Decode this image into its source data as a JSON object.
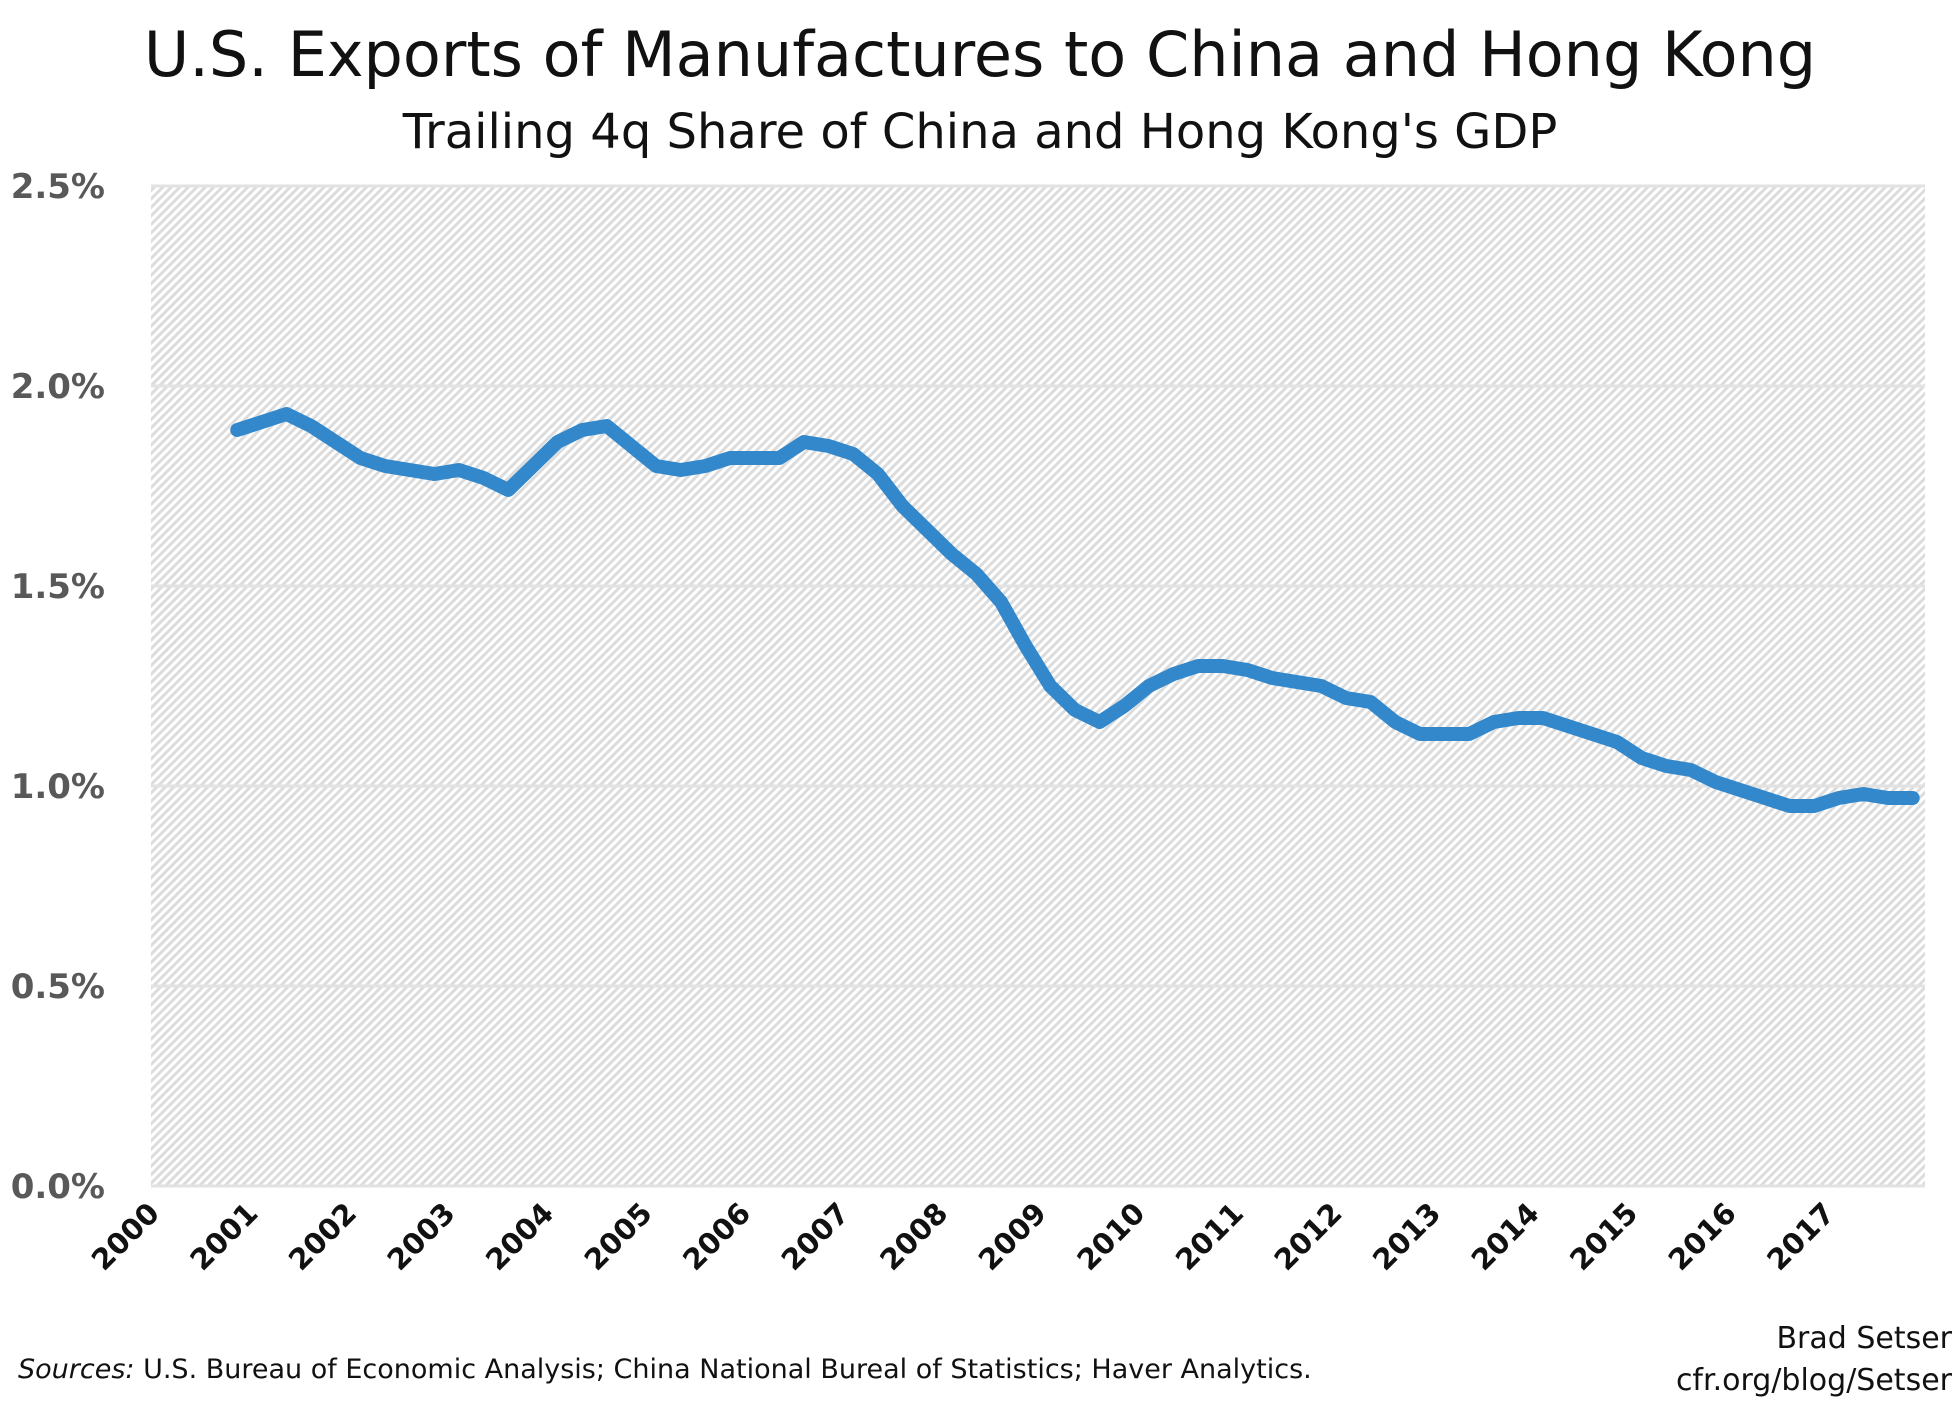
{
  "chart_data": {
    "type": "line",
    "title": "U.S. Exports of Manufactures to China and Hong Kong",
    "subtitle": "Trailing 4q Share of China and Hong Kong's GDP",
    "xlabel": "",
    "ylabel": "",
    "xlim": [
      2000,
      2018
    ],
    "ylim": [
      0,
      2.5
    ],
    "grid": true,
    "legend": "none",
    "color": "#3388cc",
    "x_tick_labels": [
      "2000",
      "2001",
      "2002",
      "2003",
      "2004",
      "2005",
      "2006",
      "2007",
      "2008",
      "2009",
      "2010",
      "2011",
      "2012",
      "2013",
      "2014",
      "2015",
      "2016",
      "2017"
    ],
    "y_tick_labels": [
      "0.0%",
      "0.5%",
      "1.0%",
      "1.5%",
      "2.0%",
      "2.5%"
    ],
    "y_ticks": [
      0,
      0.5,
      1.0,
      1.5,
      2.0,
      2.5
    ],
    "x_start": "2000Q4",
    "x_end": "2017Q4",
    "x_frequency": "quarterly",
    "values": [
      1.89,
      1.91,
      1.93,
      1.9,
      1.86,
      1.82,
      1.8,
      1.79,
      1.78,
      1.79,
      1.77,
      1.74,
      1.8,
      1.86,
      1.89,
      1.9,
      1.85,
      1.8,
      1.79,
      1.8,
      1.82,
      1.82,
      1.82,
      1.86,
      1.85,
      1.83,
      1.78,
      1.7,
      1.64,
      1.58,
      1.53,
      1.46,
      1.35,
      1.25,
      1.19,
      1.16,
      1.2,
      1.25,
      1.28,
      1.3,
      1.3,
      1.29,
      1.27,
      1.26,
      1.25,
      1.22,
      1.21,
      1.16,
      1.13,
      1.13,
      1.13,
      1.16,
      1.17,
      1.17,
      1.15,
      1.13,
      1.11,
      1.07,
      1.05,
      1.04,
      1.01,
      0.99,
      0.97,
      0.95,
      0.95,
      0.97,
      0.98,
      0.97,
      0.97
    ]
  },
  "footer": {
    "sources_label": "Sources:",
    "sources_text": " U.S. Bureau of Economic Analysis; China National Bureal of Statistics; Haver Analytics.",
    "author": "Brad Setser",
    "url": "cfr.org/blog/Setser"
  }
}
